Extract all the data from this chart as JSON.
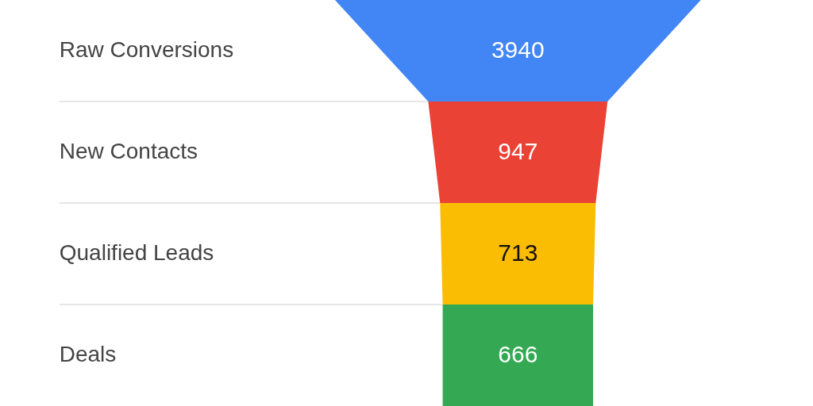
{
  "chart_data": {
    "type": "other",
    "categories": [
      "Raw Conversions",
      "New Contacts",
      "Qualified Leads",
      "Deals"
    ],
    "values": [
      3940,
      947,
      713,
      666
    ],
    "colors": [
      "#4285f4",
      "#ea4335",
      "#fbbc04",
      "#34a853"
    ],
    "data_labels": true
  }
}
